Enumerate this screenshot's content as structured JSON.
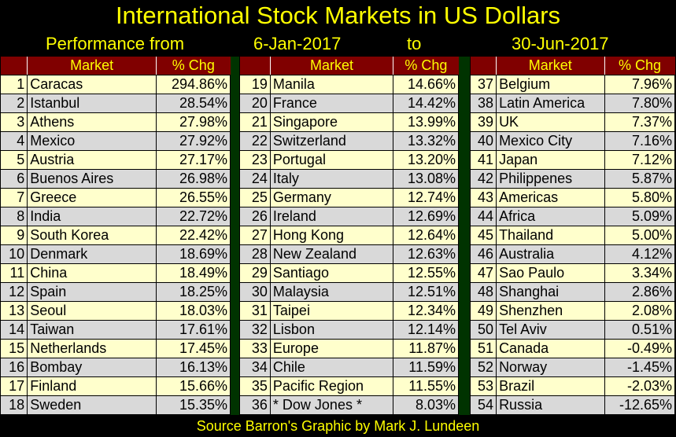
{
  "title": "International Stock Markets in US Dollars",
  "subtitle": {
    "label": "Performance from",
    "start": "6-Jan-2017",
    "to": "to",
    "end": "30-Jun-2017"
  },
  "footer": "Source Barron's    Graphic by Mark J. Lundeen",
  "colors": {
    "header_bg": "#800000",
    "header_text": "#ffff00",
    "row_odd": "#ffffcc",
    "row_even": "#d9d9d9",
    "separator": "#003300",
    "background": "#000000"
  },
  "chart_data": {
    "type": "table",
    "columns": [
      "",
      "Market",
      "% Chg"
    ],
    "rows": [
      [
        1,
        "Caracas",
        "294.86%"
      ],
      [
        2,
        "Istanbul",
        "28.54%"
      ],
      [
        3,
        "Athens",
        "27.98%"
      ],
      [
        4,
        "Mexico",
        "27.92%"
      ],
      [
        5,
        "Austria",
        "27.17%"
      ],
      [
        6,
        "Buenos Aires",
        "26.98%"
      ],
      [
        7,
        "Greece",
        "26.55%"
      ],
      [
        8,
        "India",
        "22.72%"
      ],
      [
        9,
        "South Korea",
        "22.42%"
      ],
      [
        10,
        "Denmark",
        "18.69%"
      ],
      [
        11,
        "China",
        "18.49%"
      ],
      [
        12,
        "Spain",
        "18.25%"
      ],
      [
        13,
        "Seoul",
        "18.03%"
      ],
      [
        14,
        "Taiwan",
        "17.61%"
      ],
      [
        15,
        "Netherlands",
        "17.45%"
      ],
      [
        16,
        "Bombay",
        "16.13%"
      ],
      [
        17,
        "Finland",
        "15.66%"
      ],
      [
        18,
        "Sweden",
        "15.35%"
      ],
      [
        19,
        "Manila",
        "14.66%"
      ],
      [
        20,
        "France",
        "14.42%"
      ],
      [
        21,
        "Singapore",
        "13.99%"
      ],
      [
        22,
        "Switzerland",
        "13.32%"
      ],
      [
        23,
        "Portugal",
        "13.20%"
      ],
      [
        24,
        "Italy",
        "13.08%"
      ],
      [
        25,
        "Germany",
        "12.74%"
      ],
      [
        26,
        "Ireland",
        "12.69%"
      ],
      [
        27,
        "Hong Kong",
        "12.64%"
      ],
      [
        28,
        "New Zealand",
        "12.63%"
      ],
      [
        29,
        "Santiago",
        "12.55%"
      ],
      [
        30,
        "Malaysia",
        "12.51%"
      ],
      [
        31,
        "Taipei",
        "12.34%"
      ],
      [
        32,
        "Lisbon",
        "12.14%"
      ],
      [
        33,
        "Europe",
        "11.87%"
      ],
      [
        34,
        "Chile",
        "11.59%"
      ],
      [
        35,
        "Pacific Region",
        "11.55%"
      ],
      [
        36,
        "* Dow Jones *",
        "8.03%"
      ],
      [
        37,
        "Belgium",
        "7.96%"
      ],
      [
        38,
        "Latin America",
        "7.80%"
      ],
      [
        39,
        "UK",
        "7.37%"
      ],
      [
        40,
        "Mexico City",
        "7.16%"
      ],
      [
        41,
        "Japan",
        "7.12%"
      ],
      [
        42,
        "Philippenes",
        "5.87%"
      ],
      [
        43,
        "Americas",
        "5.80%"
      ],
      [
        44,
        "Africa",
        "5.09%"
      ],
      [
        45,
        "Thailand",
        "5.00%"
      ],
      [
        46,
        "Australia",
        "4.12%"
      ],
      [
        47,
        "Sao Paulo",
        "3.34%"
      ],
      [
        48,
        "Shanghai",
        "2.86%"
      ],
      [
        49,
        "Shenzhen",
        "2.08%"
      ],
      [
        50,
        "Tel Aviv",
        "0.51%"
      ],
      [
        51,
        "Canada",
        "-0.49%"
      ],
      [
        52,
        "Norway",
        "-1.45%"
      ],
      [
        53,
        "Brazil",
        "-2.03%"
      ],
      [
        54,
        "Russia",
        "-12.65%"
      ]
    ]
  }
}
